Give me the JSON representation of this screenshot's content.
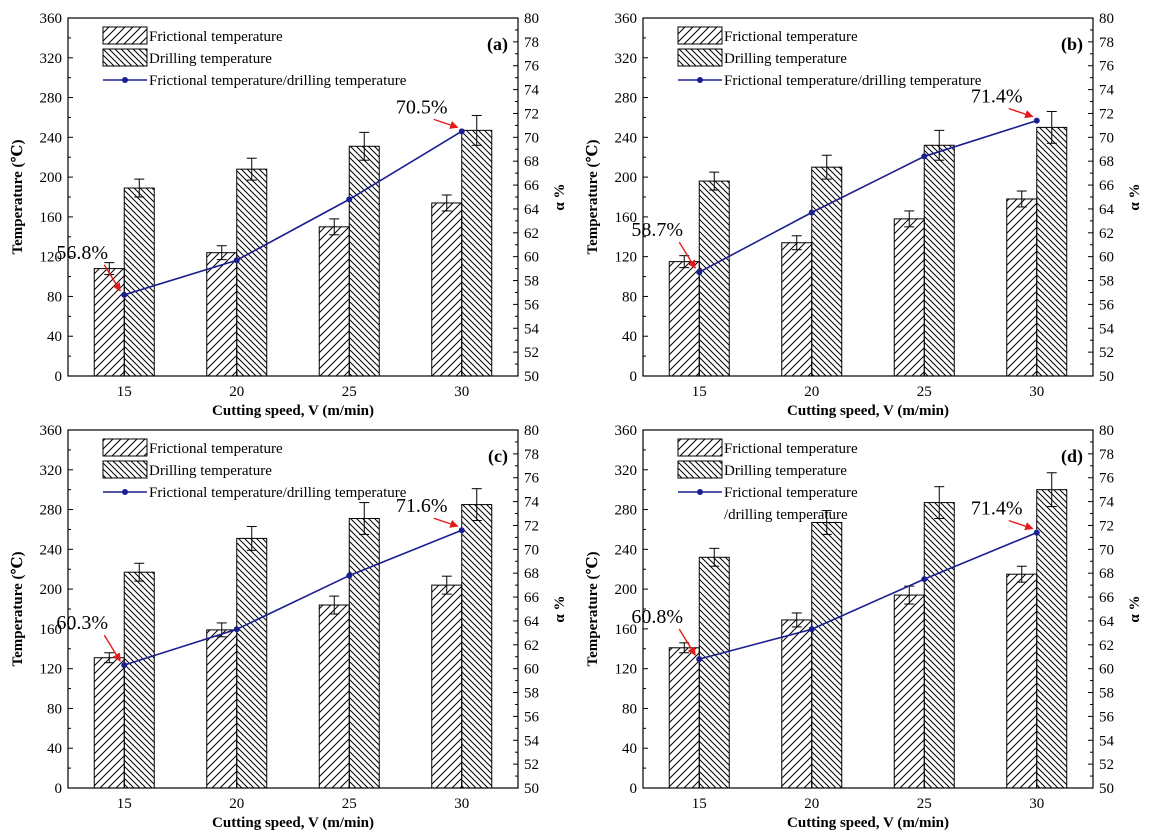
{
  "colors": {
    "bar_stroke": "#000000",
    "line": "#1a1f8f",
    "annotation_arrow": "#e31a1c",
    "background": "#ffffff"
  },
  "chart_data": [
    {
      "type": "bar",
      "panel_label": "(a)",
      "categories": [
        "15",
        "20",
        "25",
        "30"
      ],
      "xlabel": "Cutting speed, V (m/min)",
      "ylabel": "Temperature (℃)",
      "y2label": "α %",
      "ylim": [
        0,
        360
      ],
      "y2lim": [
        50,
        80
      ],
      "legend_position": "top-left",
      "series": [
        {
          "name": "Frictional temperature",
          "kind": "bar",
          "pattern": "forward-hatch",
          "values": [
            108,
            124,
            150,
            174
          ],
          "errors": [
            6,
            7,
            8,
            8
          ]
        },
        {
          "name": "Drilling temperature",
          "kind": "bar",
          "pattern": "backward-hatch",
          "values": [
            189,
            208,
            231,
            247
          ],
          "errors": [
            9,
            11,
            14,
            15
          ]
        },
        {
          "name": "Frictional temperature/drilling temperature",
          "kind": "line",
          "axis": "right",
          "values": [
            56.8,
            59.7,
            64.8,
            70.5
          ]
        }
      ],
      "annotations": [
        {
          "text": "56.8%",
          "category": "15"
        },
        {
          "text": "70.5%",
          "category": "30"
        }
      ]
    },
    {
      "type": "bar",
      "panel_label": "(b)",
      "categories": [
        "15",
        "20",
        "25",
        "30"
      ],
      "xlabel": "Cutting speed, V (m/min)",
      "ylabel": "Temperature (℃)",
      "y2label": "α %",
      "ylim": [
        0,
        360
      ],
      "y2lim": [
        50,
        80
      ],
      "legend_position": "top-left",
      "series": [
        {
          "name": "Frictional temperature",
          "kind": "bar",
          "pattern": "forward-hatch",
          "values": [
            115,
            134,
            158,
            178
          ],
          "errors": [
            6,
            7,
            8,
            8
          ]
        },
        {
          "name": "Drilling temperature",
          "kind": "bar",
          "pattern": "backward-hatch",
          "values": [
            196,
            210,
            232,
            250
          ],
          "errors": [
            9,
            12,
            15,
            16
          ]
        },
        {
          "name": "Frictional temperature/drilling temperature",
          "kind": "line",
          "axis": "right",
          "values": [
            58.7,
            63.7,
            68.4,
            71.4
          ]
        }
      ],
      "annotations": [
        {
          "text": "58.7%",
          "category": "15"
        },
        {
          "text": "71.4%",
          "category": "30"
        }
      ]
    },
    {
      "type": "bar",
      "panel_label": "(c)",
      "categories": [
        "15",
        "20",
        "25",
        "30"
      ],
      "xlabel": "Cutting speed, V (m/min)",
      "ylabel": "Temperature (℃)",
      "y2label": "α %",
      "ylim": [
        0,
        360
      ],
      "y2lim": [
        50,
        80
      ],
      "legend_position": "top-left",
      "series": [
        {
          "name": "Frictional temperature",
          "kind": "bar",
          "pattern": "forward-hatch",
          "values": [
            131,
            159,
            184,
            204
          ],
          "errors": [
            5,
            7,
            9,
            9
          ]
        },
        {
          "name": "Drilling temperature",
          "kind": "bar",
          "pattern": "backward-hatch",
          "values": [
            217,
            251,
            271,
            285
          ],
          "errors": [
            9,
            12,
            16,
            16
          ]
        },
        {
          "name": "Frictional temperature/drilling temperature",
          "kind": "line",
          "axis": "right",
          "values": [
            60.3,
            63.3,
            67.8,
            71.6
          ]
        }
      ],
      "annotations": [
        {
          "text": "60.3%",
          "category": "15"
        },
        {
          "text": "71.6%",
          "category": "30"
        }
      ]
    },
    {
      "type": "bar",
      "panel_label": "(d)",
      "categories": [
        "15",
        "20",
        "25",
        "30"
      ],
      "xlabel": "Cutting speed, V (m/min)",
      "ylabel": "Temperature (℃)",
      "y2label": "α %",
      "ylim": [
        0,
        360
      ],
      "y2lim": [
        50,
        80
      ],
      "legend_position": "top-left",
      "legend_line_label_lines": [
        "Frictional temperature",
        "/drilling temperature"
      ],
      "series": [
        {
          "name": "Frictional temperature",
          "kind": "bar",
          "pattern": "forward-hatch",
          "values": [
            141,
            169,
            194,
            215
          ],
          "errors": [
            5,
            7,
            9,
            8
          ]
        },
        {
          "name": "Drilling temperature",
          "kind": "bar",
          "pattern": "backward-hatch",
          "values": [
            232,
            267,
            287,
            300
          ],
          "errors": [
            9,
            12,
            16,
            17
          ]
        },
        {
          "name": "Frictional temperature/drilling temperature",
          "kind": "line",
          "axis": "right",
          "values": [
            60.8,
            63.3,
            67.5,
            71.4
          ]
        }
      ],
      "annotations": [
        {
          "text": "60.8%",
          "category": "15"
        },
        {
          "text": "71.4%",
          "category": "30"
        }
      ]
    }
  ]
}
